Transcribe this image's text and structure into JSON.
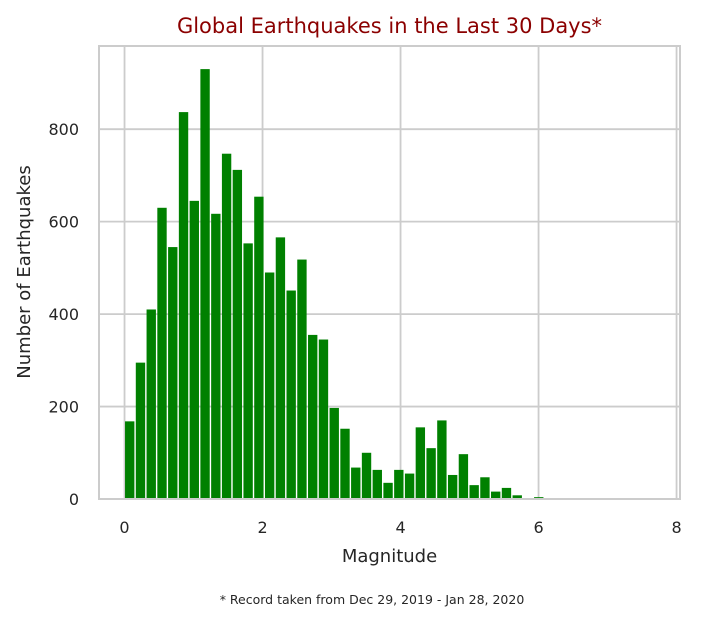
{
  "colors": {
    "title": "#8b0000",
    "bar": "#008000",
    "grid": "#cccccc",
    "frame": "#cccccc",
    "text": "#262626"
  },
  "chart_data": {
    "type": "bar",
    "title": "Global Earthquakes in the Last 30 Days*",
    "xlabel": "Magnitude",
    "ylabel": "Number of Earthquakes",
    "footnote": "* Record taken from Dec 29, 2019 - Jan 28, 2020",
    "xlim": [
      -0.37,
      8.05
    ],
    "ylim": [
      0,
      980
    ],
    "grid": true,
    "bin_width": 0.156,
    "xticks": [
      0,
      2,
      4,
      6,
      8
    ],
    "xtick_labels": [
      "0",
      "2",
      "4",
      "6",
      "8"
    ],
    "yticks": [
      0,
      200,
      400,
      600,
      800
    ],
    "ytick_labels": [
      "0",
      "200",
      "400",
      "600",
      "800"
    ],
    "x": [
      0.0,
      0.156,
      0.312,
      0.468,
      0.624,
      0.78,
      0.936,
      1.092,
      1.248,
      1.404,
      1.56,
      1.716,
      1.872,
      2.028,
      2.184,
      2.34,
      2.496,
      2.652,
      2.808,
      2.964,
      3.12,
      3.276,
      3.432,
      3.588,
      3.744,
      3.9,
      4.056,
      4.212,
      4.368,
      4.524,
      4.68,
      4.836,
      4.992,
      5.148,
      5.304,
      5.46,
      5.616,
      5.772,
      5.928,
      6.084,
      6.24,
      6.396,
      6.552,
      6.708,
      6.864,
      7.02,
      7.176,
      7.332,
      7.488,
      7.644
    ],
    "values": [
      168,
      295,
      410,
      630,
      545,
      837,
      645,
      930,
      617,
      747,
      712,
      553,
      654,
      490,
      566,
      451,
      518,
      355,
      345,
      197,
      152,
      68,
      100,
      63,
      35,
      63,
      55,
      155,
      110,
      170,
      52,
      97,
      30,
      47,
      16,
      24,
      8,
      1,
      4,
      1,
      1,
      1,
      1,
      1,
      1,
      1,
      1,
      1,
      1,
      1
    ]
  }
}
